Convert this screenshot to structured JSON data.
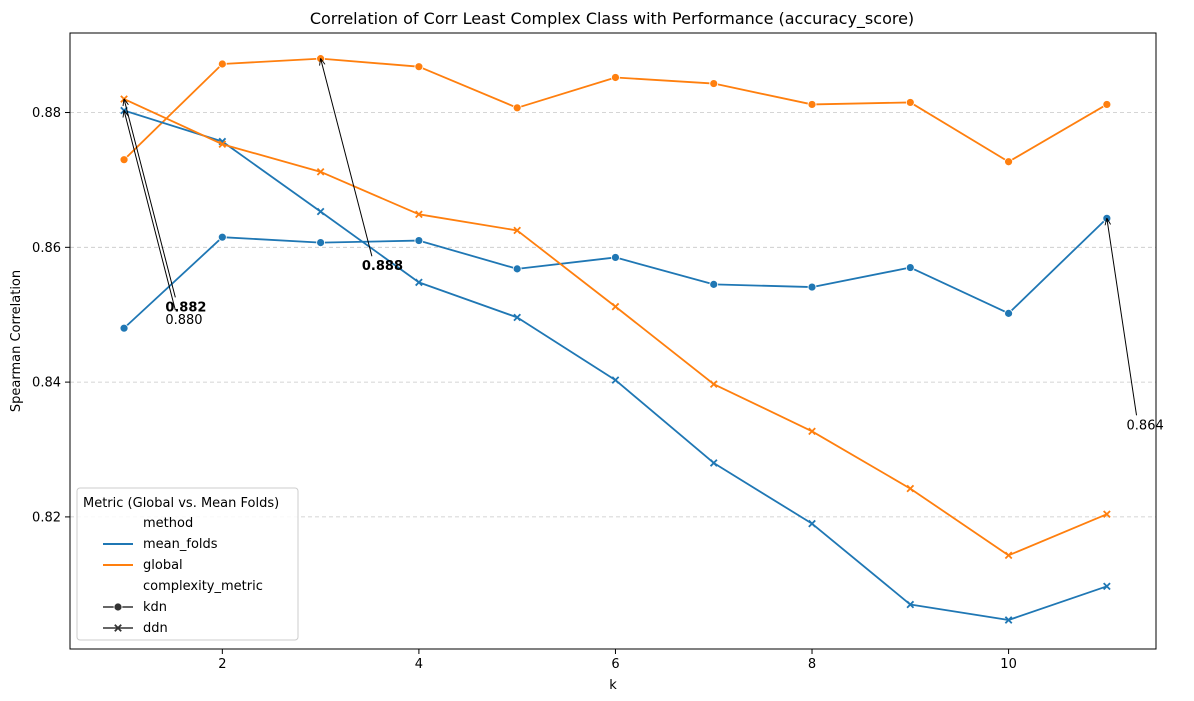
{
  "chart_data": {
    "type": "line",
    "title": "Correlation of Corr Least Complex Class with Performance (accuracy_score)",
    "xlabel": "k",
    "ylabel": "Spearman Correlation",
    "xlim": [
      0.45,
      11.5
    ],
    "ylim": [
      0.8004,
      0.8918
    ],
    "x_ticks": [
      2,
      4,
      6,
      8,
      10
    ],
    "y_ticks": [
      0.82,
      0.84,
      0.86,
      0.88
    ],
    "grid": "horizontal-dashed",
    "x": [
      1,
      2,
      3,
      4,
      5,
      6,
      7,
      8,
      9,
      10,
      11
    ],
    "series": [
      {
        "method": "mean_folds",
        "complexity_metric": "kdn",
        "color": "#1f77b4",
        "marker": "circle",
        "values": [
          0.848,
          0.8615,
          0.8607,
          0.861,
          0.8568,
          0.8585,
          0.8545,
          0.8541,
          0.857,
          0.8502,
          0.8643
        ]
      },
      {
        "method": "global",
        "complexity_metric": "kdn",
        "color": "#ff7f0e",
        "marker": "circle",
        "values": [
          0.873,
          0.8872,
          0.888,
          0.8868,
          0.8807,
          0.8852,
          0.8843,
          0.8812,
          0.8815,
          0.8727,
          0.8812
        ]
      },
      {
        "method": "mean_folds",
        "complexity_metric": "ddn",
        "color": "#1f77b4",
        "marker": "x",
        "values": [
          0.8803,
          0.8757,
          0.8653,
          0.8548,
          0.8496,
          0.8403,
          0.828,
          0.819,
          0.807,
          0.8047,
          0.8097
        ]
      },
      {
        "method": "global",
        "complexity_metric": "ddn",
        "color": "#ff7f0e",
        "marker": "x",
        "values": [
          0.882,
          0.8753,
          0.8712,
          0.8649,
          0.8625,
          0.8512,
          0.8397,
          0.8327,
          0.8242,
          0.8143,
          0.8204
        ]
      }
    ],
    "annotations": [
      {
        "text": "0.882",
        "bold": true,
        "point": [
          1,
          0.882
        ],
        "text_at": [
          1.42,
          0.8505
        ]
      },
      {
        "text": "0.880",
        "bold": false,
        "point": [
          1,
          0.8803
        ],
        "text_at": [
          1.42,
          0.8486
        ]
      },
      {
        "text": "0.888",
        "bold": true,
        "point": [
          3,
          0.888
        ],
        "text_at": [
          3.42,
          0.8566
        ]
      },
      {
        "text": "0.864",
        "bold": false,
        "point": [
          11,
          0.8643
        ],
        "text_at": [
          11.2,
          0.833
        ]
      }
    ],
    "legend": {
      "position": "lower-left",
      "title": "Metric (Global vs. Mean Folds)",
      "entries": [
        {
          "label": "method",
          "kind": "header"
        },
        {
          "label": "mean_folds",
          "kind": "line",
          "color": "#1f77b4"
        },
        {
          "label": "global",
          "kind": "line",
          "color": "#ff7f0e"
        },
        {
          "label": "complexity_metric",
          "kind": "header"
        },
        {
          "label": "kdn",
          "kind": "marker",
          "marker": "circle",
          "color": "#333333"
        },
        {
          "label": "ddn",
          "kind": "marker",
          "marker": "x",
          "color": "#333333"
        }
      ]
    }
  }
}
